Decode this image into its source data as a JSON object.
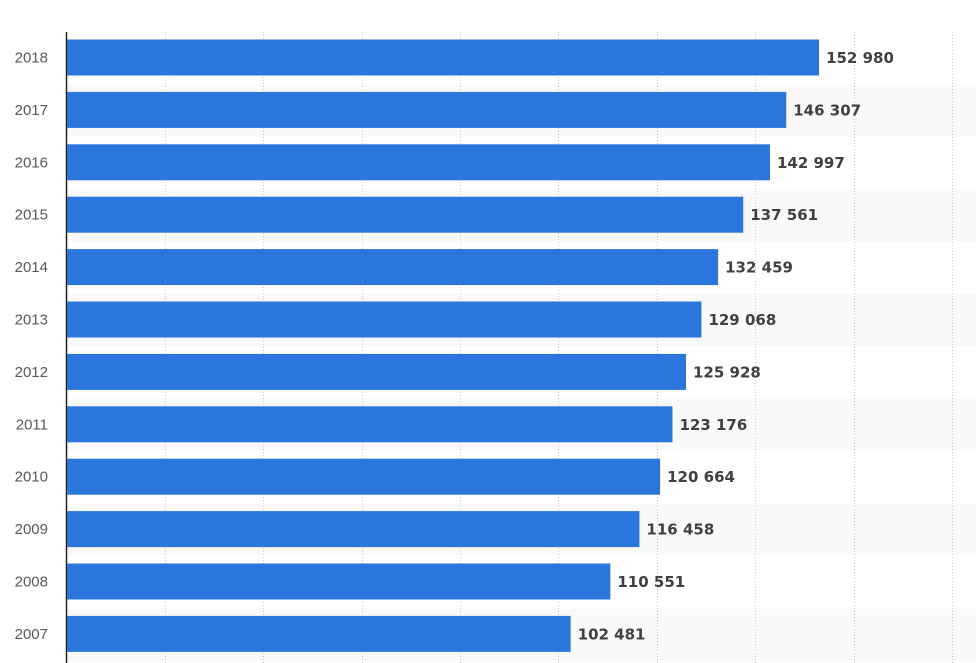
{
  "chart_data": {
    "type": "bar",
    "orientation": "horizontal",
    "categories": [
      "2018",
      "2017",
      "2016",
      "2015",
      "2014",
      "2013",
      "2012",
      "2011",
      "2010",
      "2009",
      "2008",
      "2007"
    ],
    "values": [
      152980,
      146307,
      142997,
      137561,
      132459,
      129068,
      125928,
      123176,
      120664,
      116458,
      110551,
      102481
    ],
    "value_labels": [
      "152 980",
      "146 307",
      "142 997",
      "137 561",
      "132 459",
      "129 068",
      "125 928",
      "123 176",
      "120 664",
      "116 458",
      "110 551",
      "102 481"
    ],
    "xlim": [
      0,
      180000
    ],
    "grid": true,
    "bar_color": "#2a76dd",
    "band_color": "#f9f9f9",
    "grid_color": "#c8c8c8",
    "title": "",
    "xlabel": "",
    "ylabel": ""
  }
}
